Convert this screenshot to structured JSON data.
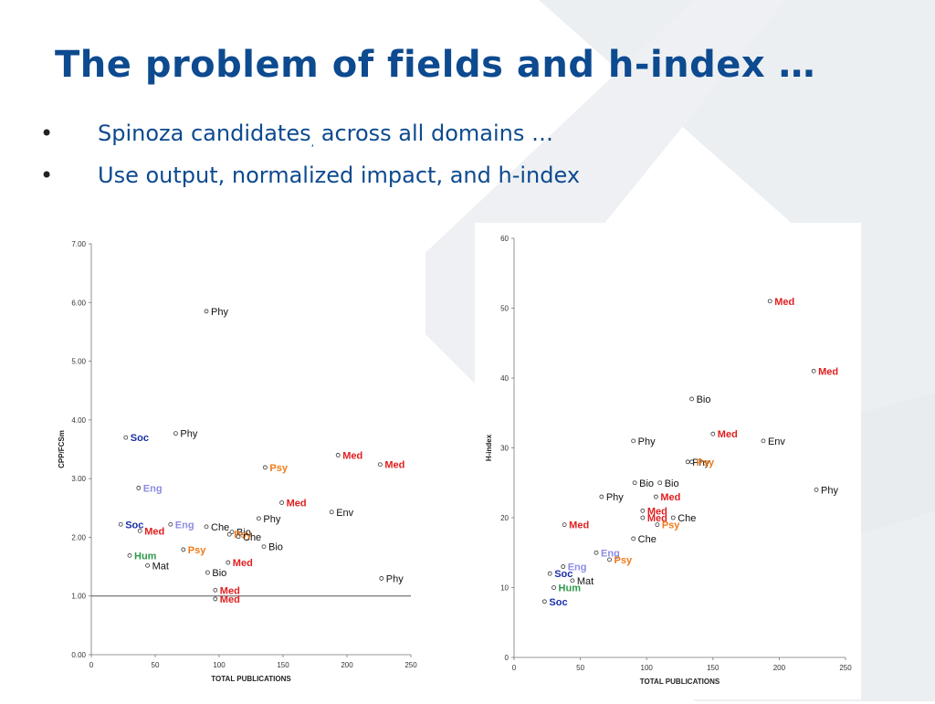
{
  "slide": {
    "title": "The problem of fields and h-index …",
    "bullets": [
      {
        "marker": "•",
        "parts": [
          "Spinoza candidates",
          ",",
          " across all domains …"
        ]
      },
      {
        "marker": "•",
        "parts": [
          "Use output, normalized impact, and h-index",
          "",
          ""
        ]
      }
    ]
  },
  "colors": {
    "title": "#0d4a8f",
    "bullet_text": "#0d4a8f",
    "Soc": "#1a2fa8",
    "Med": "#e01f1f",
    "Eng": "#8c8ce6",
    "Psy": "#f07a1a",
    "Hum": "#2e9a4a",
    "default_label": "#111111"
  },
  "chart_data": [
    {
      "type": "scatter",
      "title": "",
      "xlabel": "TOTAL PUBLICATIONS",
      "ylabel": "CPP/FCSm",
      "xlim": [
        0,
        250
      ],
      "ylim": [
        0,
        7
      ],
      "xticks": [
        "0",
        "50",
        "100",
        "150",
        "200",
        "250"
      ],
      "yticks": [
        "0.00",
        "1.00",
        "2.00",
        "3.00",
        "4.00",
        "5.00",
        "6.00",
        "7.00"
      ],
      "reference_line_y": 1.0,
      "grid": false,
      "points": [
        {
          "x": 90,
          "y": 5.85,
          "label": "Phy"
        },
        {
          "x": 27,
          "y": 3.7,
          "label": "Soc"
        },
        {
          "x": 66,
          "y": 3.77,
          "label": "Phy"
        },
        {
          "x": 193,
          "y": 3.4,
          "label": "Med"
        },
        {
          "x": 226,
          "y": 3.24,
          "label": "Med"
        },
        {
          "x": 136,
          "y": 3.19,
          "label": "Psy"
        },
        {
          "x": 37,
          "y": 2.84,
          "label": "Eng"
        },
        {
          "x": 149,
          "y": 2.59,
          "label": "Med"
        },
        {
          "x": 188,
          "y": 2.43,
          "label": "Env"
        },
        {
          "x": 131,
          "y": 2.32,
          "label": "Phy"
        },
        {
          "x": 23,
          "y": 2.22,
          "label": "Soc"
        },
        {
          "x": 62,
          "y": 2.22,
          "label": "Eng"
        },
        {
          "x": 90,
          "y": 2.18,
          "label": "Che"
        },
        {
          "x": 38,
          "y": 2.11,
          "label": "Med"
        },
        {
          "x": 110,
          "y": 2.09,
          "label": "Bio"
        },
        {
          "x": 108,
          "y": 2.05,
          "label": "Psy"
        },
        {
          "x": 115,
          "y": 2.01,
          "label": "Che"
        },
        {
          "x": 135,
          "y": 1.84,
          "label": "Bio"
        },
        {
          "x": 72,
          "y": 1.79,
          "label": "Psy"
        },
        {
          "x": 30,
          "y": 1.69,
          "label": "Hum"
        },
        {
          "x": 107,
          "y": 1.57,
          "label": "Med"
        },
        {
          "x": 44,
          "y": 1.52,
          "label": "Mat"
        },
        {
          "x": 91,
          "y": 1.4,
          "label": "Bio"
        },
        {
          "x": 227,
          "y": 1.3,
          "label": "Phy"
        },
        {
          "x": 97,
          "y": 1.1,
          "label": "Med"
        },
        {
          "x": 97,
          "y": 0.95,
          "label": "Med"
        }
      ]
    },
    {
      "type": "scatter",
      "title": "",
      "xlabel": "TOTAL PUBLICATIONS",
      "ylabel": "H-index",
      "xlim": [
        0,
        250
      ],
      "ylim": [
        0,
        60
      ],
      "xticks": [
        "0",
        "50",
        "100",
        "150",
        "200",
        "250"
      ],
      "yticks": [
        "0",
        "10",
        "20",
        "30",
        "40",
        "50",
        "60"
      ],
      "grid": false,
      "points": [
        {
          "x": 193,
          "y": 51,
          "label": "Med"
        },
        {
          "x": 226,
          "y": 41,
          "label": "Med"
        },
        {
          "x": 134,
          "y": 37,
          "label": "Bio"
        },
        {
          "x": 150,
          "y": 32,
          "label": "Med"
        },
        {
          "x": 90,
          "y": 31,
          "label": "Phy"
        },
        {
          "x": 188,
          "y": 31,
          "label": "Env"
        },
        {
          "x": 131,
          "y": 28,
          "label": "Phy"
        },
        {
          "x": 134,
          "y": 28,
          "label": "Psy"
        },
        {
          "x": 91,
          "y": 25,
          "label": "Bio"
        },
        {
          "x": 110,
          "y": 25,
          "label": "Bio"
        },
        {
          "x": 228,
          "y": 24,
          "label": "Phy"
        },
        {
          "x": 66,
          "y": 23,
          "label": "Phy"
        },
        {
          "x": 107,
          "y": 23,
          "label": "Med"
        },
        {
          "x": 97,
          "y": 21,
          "label": "Med"
        },
        {
          "x": 97,
          "y": 20,
          "label": "Med"
        },
        {
          "x": 120,
          "y": 20,
          "label": "Che"
        },
        {
          "x": 38,
          "y": 19,
          "label": "Med"
        },
        {
          "x": 108,
          "y": 19,
          "label": "Psy"
        },
        {
          "x": 90,
          "y": 17,
          "label": "Che"
        },
        {
          "x": 62,
          "y": 15,
          "label": "Eng"
        },
        {
          "x": 72,
          "y": 14,
          "label": "Psy"
        },
        {
          "x": 37,
          "y": 13,
          "label": "Eng"
        },
        {
          "x": 27,
          "y": 12,
          "label": "Soc"
        },
        {
          "x": 44,
          "y": 11,
          "label": "Mat"
        },
        {
          "x": 30,
          "y": 10,
          "label": "Hum"
        },
        {
          "x": 23,
          "y": 8,
          "label": "Soc"
        }
      ]
    }
  ]
}
